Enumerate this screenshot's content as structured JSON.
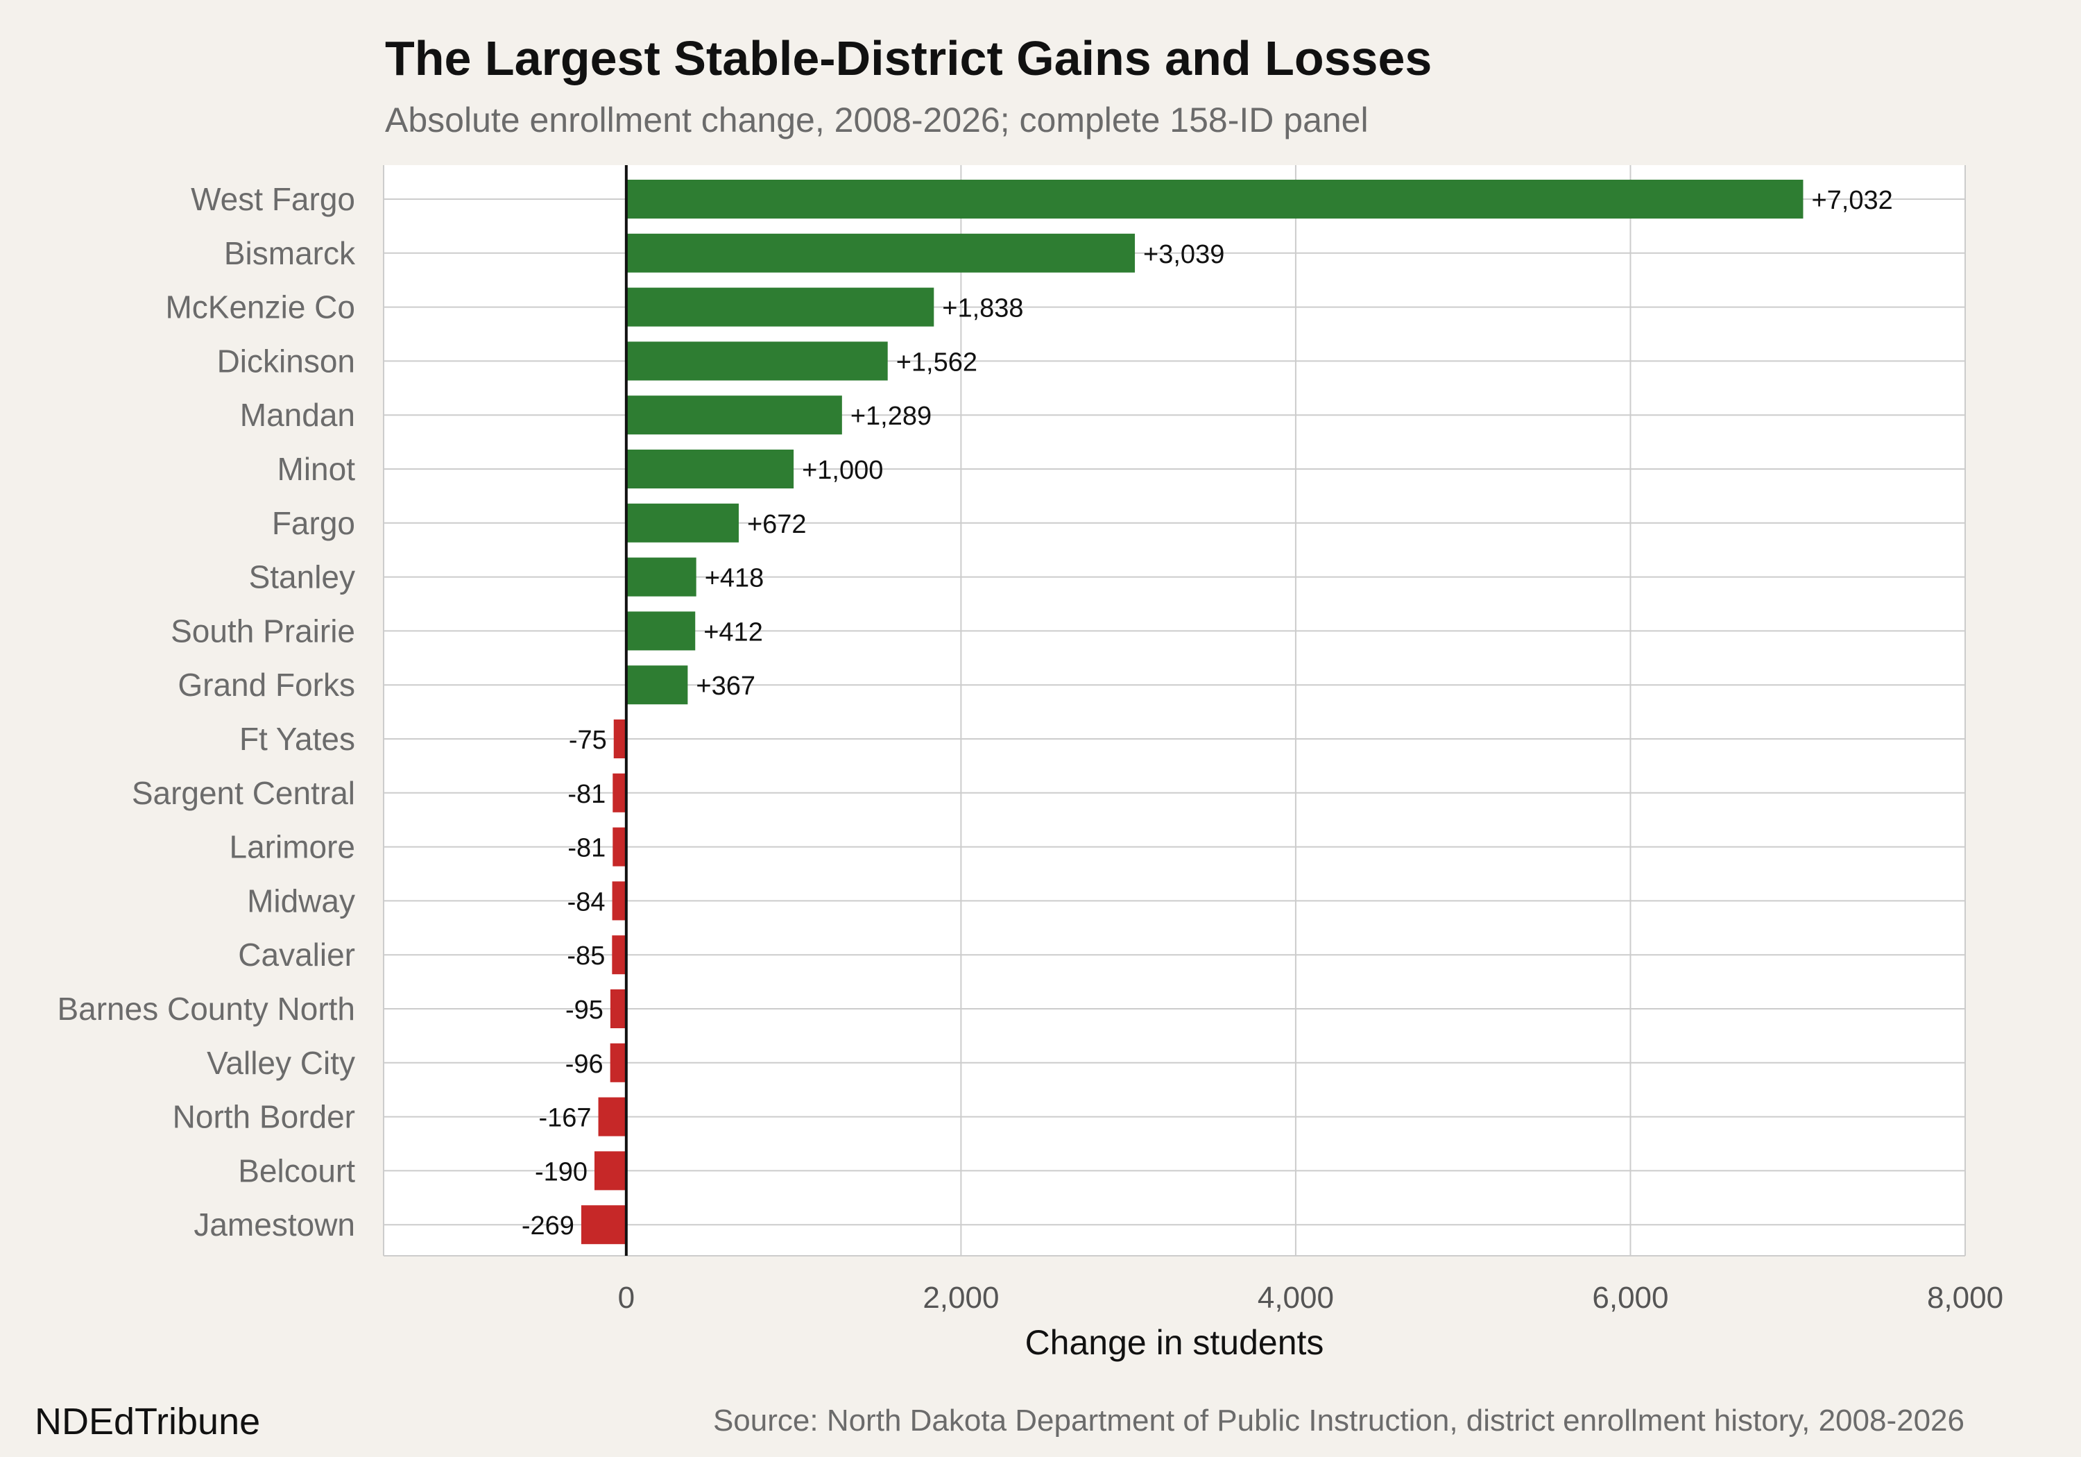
{
  "chart_data": {
    "type": "bar",
    "orientation": "horizontal",
    "title": "The Largest Stable-District Gains and Losses",
    "subtitle": "Absolute enrollment change, 2008-2026; complete 158-ID panel",
    "xlabel": "Change in students",
    "ylabel": "",
    "xlim": [
      -1450,
      8000
    ],
    "x_ticks": [
      0,
      2000,
      4000,
      6000,
      8000
    ],
    "x_tick_labels": [
      "0",
      "2,000",
      "4,000",
      "6,000",
      "8,000"
    ],
    "grid": true,
    "legend": "none",
    "colors": {
      "positive": "#2e7d32",
      "negative": "#c62828",
      "plot_bg": "#ffffff",
      "page_bg": "#f4f1ec",
      "grid": "#cccccc",
      "zero_line": "#111111"
    },
    "categories": [
      "West Fargo",
      "Bismarck",
      "McKenzie Co",
      "Dickinson",
      "Mandan",
      "Minot",
      "Fargo",
      "Stanley",
      "South Prairie",
      "Grand Forks",
      "Ft Yates",
      "Sargent Central",
      "Larimore",
      "Midway",
      "Cavalier",
      "Barnes County North",
      "Valley City",
      "North Border",
      "Belcourt",
      "Jamestown"
    ],
    "values": [
      7032,
      3039,
      1838,
      1562,
      1289,
      1000,
      672,
      418,
      412,
      367,
      -75,
      -81,
      -81,
      -84,
      -85,
      -95,
      -96,
      -167,
      -190,
      -269
    ],
    "data_labels": [
      "+7,032",
      "+3,039",
      "+1,838",
      "+1,562",
      "+1,289",
      "+1,000",
      "+672",
      "+418",
      "+412",
      "+367",
      "-75",
      "-81",
      "-81",
      "-84",
      "-85",
      "-95",
      "-96",
      "-167",
      "-190",
      "-269"
    ]
  },
  "footer": {
    "brand": "NDEdTribune",
    "source": "Source: North Dakota Department of Public Instruction, district enrollment history, 2008-2026"
  }
}
